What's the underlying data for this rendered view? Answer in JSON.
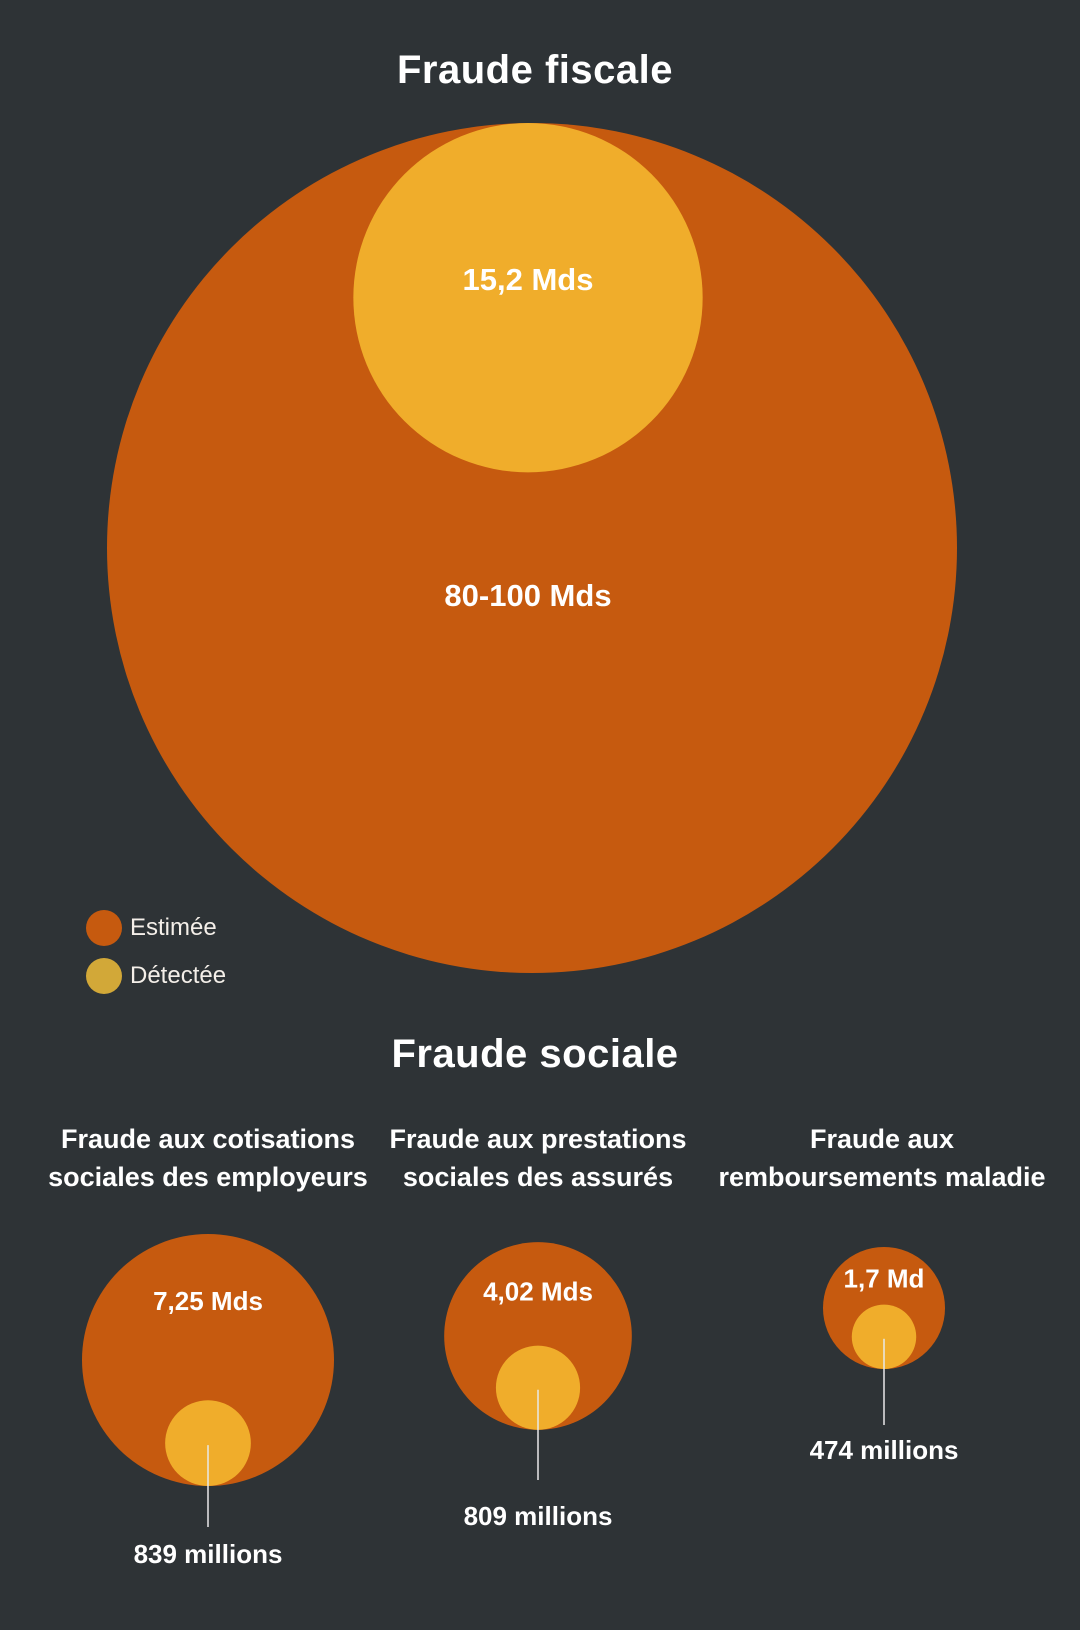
{
  "colors": {
    "background": "#2e3336",
    "estimated": "#c65a0f",
    "detected": "#f0ad2b",
    "legend_detected": "#d2a838",
    "leader_line": "#e8e8e8"
  },
  "sections": {
    "fiscal_title": "Fraude fiscale",
    "social_title": "Fraude sociale"
  },
  "legend": {
    "items": [
      {
        "label": "Estimée",
        "color": "#c65a0f"
      },
      {
        "label": "Détectée",
        "color": "#d2a838"
      }
    ]
  },
  "chart_data": [
    {
      "type": "nested-bubble",
      "title": "Fraude fiscale",
      "estimated": {
        "label": "80-100 Mds",
        "value_eur": 90000000000
      },
      "detected": {
        "label": "15,2 Mds",
        "value_eur": 15200000000
      }
    },
    {
      "type": "nested-bubble",
      "group": "Fraude sociale",
      "title": "Fraude aux cotisations sociales des employeurs",
      "title_lines": [
        "Fraude aux cotisations",
        "sociales des employeurs"
      ],
      "estimated": {
        "label": "7,25 Mds",
        "value_eur": 7250000000
      },
      "detected": {
        "label": "839 millions",
        "value_eur": 839000000
      }
    },
    {
      "type": "nested-bubble",
      "group": "Fraude sociale",
      "title": "Fraude aux prestations sociales des assurés",
      "title_lines": [
        "Fraude aux prestations",
        "sociales des assurés"
      ],
      "estimated": {
        "label": "4,02 Mds",
        "value_eur": 4020000000
      },
      "detected": {
        "label": "809 millions",
        "value_eur": 809000000
      }
    },
    {
      "type": "nested-bubble",
      "group": "Fraude sociale",
      "title": "Fraude aux remboursements maladie",
      "title_lines": [
        "Fraude aux",
        "remboursements maladie"
      ],
      "estimated": {
        "label": "1,7 Md",
        "value_eur": 1700000000
      },
      "detected": {
        "label": "474 millions",
        "value_eur": 474000000
      }
    }
  ]
}
